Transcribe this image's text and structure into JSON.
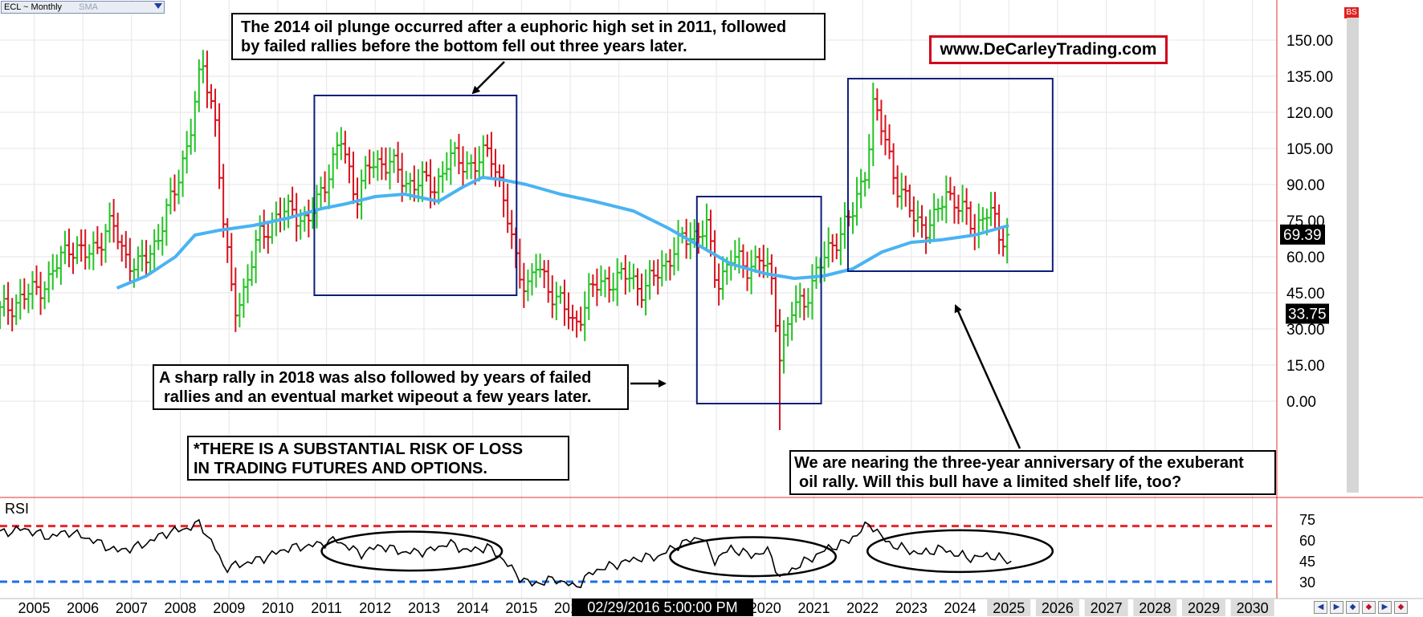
{
  "header": {
    "series_name": "ECL ~ Monthly",
    "indicator": "SMA",
    "website": "www.DeCarleyTrading.com",
    "bs_tag": "BS"
  },
  "annotations": {
    "callout_2014": [
      "The 2014 oil plunge occurred after a euphoric high set in 2011, followed",
      "by failed rallies before the bottom fell out three years later."
    ],
    "callout_2018": [
      "A sharp rally in 2018 was also followed by years of failed",
      "rallies and an eventual market wipeout a few years later."
    ],
    "callout_now": [
      "We are nearing the three-year anniversary of the exuberant",
      "oil rally. Will this bull have a limited shelf life, too?"
    ],
    "risk_disclaimer": [
      "*THERE IS A SUBSTANTIAL RISK OF LOSS",
      "IN TRADING FUTURES AND OPTIONS."
    ]
  },
  "cursor_label": "02/29/2016 5:00:00 PM",
  "rsi_title": "RSI",
  "colors": {
    "up_bar": "#22c322",
    "down_bar": "#d6141e",
    "sma": "#4ab3f2",
    "box": "#0b1e7a",
    "rsi_line": "#000000",
    "overbought": "#e8242c",
    "oversold": "#1e6fe0",
    "pane_border": "#e03030",
    "grid": "#e6e6e6",
    "ellipse": "#000000"
  },
  "chart_data": [
    {
      "type": "ohlc",
      "name": "ECL ~ Monthly",
      "ylim": [
        -20,
        165
      ],
      "y_ticks": [
        "150.00",
        "135.00",
        "120.00",
        "105.00",
        "90.00",
        "75.00",
        "60.00",
        "45.00",
        "30.00",
        "15.00",
        "0.00"
      ],
      "x_range": [
        2004.3,
        2030.5
      ],
      "x_ticks": [
        "2005",
        "2006",
        "2007",
        "2008",
        "2009",
        "2010",
        "2011",
        "2012",
        "2013",
        "2014",
        "2015",
        "2016",
        "2017",
        "2018",
        "2019",
        "2020",
        "2021",
        "2022",
        "2023",
        "2024",
        "2025",
        "2026",
        "2027",
        "2028",
        "2029",
        "2030"
      ],
      "price_anchors": [
        [
          2004.3,
          37
        ],
        [
          2004.7,
          42
        ],
        [
          2005.3,
          50
        ],
        [
          2005.7,
          65
        ],
        [
          2006.1,
          60
        ],
        [
          2006.6,
          74
        ],
        [
          2006.8,
          63
        ],
        [
          2007.1,
          55
        ],
        [
          2007.4,
          62
        ],
        [
          2007.6,
          72
        ],
        [
          2007.9,
          88
        ],
        [
          2008.2,
          112
        ],
        [
          2008.45,
          140
        ],
        [
          2008.7,
          120
        ],
        [
          2008.9,
          70
        ],
        [
          2009.1,
          38
        ],
        [
          2009.35,
          48
        ],
        [
          2009.6,
          68
        ],
        [
          2009.9,
          75
        ],
        [
          2010.3,
          80
        ],
        [
          2010.6,
          73
        ],
        [
          2010.9,
          88
        ],
        [
          2011.3,
          108
        ],
        [
          2011.6,
          85
        ],
        [
          2011.9,
          98
        ],
        [
          2012.3,
          100
        ],
        [
          2012.6,
          90
        ],
        [
          2012.9,
          92
        ],
        [
          2013.2,
          88
        ],
        [
          2013.5,
          101
        ],
        [
          2013.8,
          99
        ],
        [
          2014.1,
          98
        ],
        [
          2014.35,
          105
        ],
        [
          2014.6,
          88
        ],
        [
          2014.85,
          60
        ],
        [
          2015.1,
          47
        ],
        [
          2015.3,
          56
        ],
        [
          2015.55,
          47
        ],
        [
          2015.8,
          42
        ],
        [
          2016.08,
          30
        ],
        [
          2016.4,
          46
        ],
        [
          2016.8,
          50
        ],
        [
          2017.2,
          52
        ],
        [
          2017.5,
          46
        ],
        [
          2017.9,
          56
        ],
        [
          2018.3,
          67
        ],
        [
          2018.8,
          72
        ],
        [
          2019.0,
          48
        ],
        [
          2019.3,
          60
        ],
        [
          2019.6,
          55
        ],
        [
          2019.9,
          60
        ],
        [
          2020.15,
          48
        ],
        [
          2020.3,
          20
        ],
        [
          2020.55,
          37
        ],
        [
          2020.8,
          42
        ],
        [
          2021.1,
          55
        ],
        [
          2021.4,
          66
        ],
        [
          2021.8,
          78
        ],
        [
          2022.1,
          100
        ],
        [
          2022.2,
          123
        ],
        [
          2022.45,
          110
        ],
        [
          2022.7,
          90
        ],
        [
          2023.0,
          78
        ],
        [
          2023.3,
          72
        ],
        [
          2023.5,
          75
        ],
        [
          2023.7,
          88
        ],
        [
          2024.0,
          80
        ],
        [
          2024.3,
          72
        ],
        [
          2024.6,
          80
        ],
        [
          2024.8,
          68
        ],
        [
          2025.0,
          69.39
        ]
      ],
      "sma_series": [
        [
          2006.7,
          47
        ],
        [
          2007.3,
          52
        ],
        [
          2007.9,
          60
        ],
        [
          2008.3,
          69
        ],
        [
          2008.8,
          71
        ],
        [
          2009.5,
          73
        ],
        [
          2010.2,
          76
        ],
        [
          2010.9,
          80
        ],
        [
          2011.4,
          82
        ],
        [
          2012.0,
          85
        ],
        [
          2012.6,
          86
        ],
        [
          2013.3,
          83
        ],
        [
          2013.8,
          89
        ],
        [
          2014.2,
          93
        ],
        [
          2014.6,
          92
        ],
        [
          2015.1,
          90
        ],
        [
          2015.8,
          86
        ],
        [
          2016.5,
          83
        ],
        [
          2017.3,
          79
        ],
        [
          2018.0,
          72
        ],
        [
          2018.7,
          64
        ],
        [
          2019.3,
          57
        ],
        [
          2020.0,
          53
        ],
        [
          2020.6,
          51
        ],
        [
          2021.2,
          52
        ],
        [
          2021.8,
          55
        ],
        [
          2022.4,
          62
        ],
        [
          2023.0,
          66
        ],
        [
          2023.6,
          67
        ],
        [
          2024.3,
          69
        ],
        [
          2025.0,
          73
        ]
      ],
      "series_low": [
        [
          2020.32,
          -12
        ]
      ],
      "last_price_label": "69.39",
      "secondary_label": "33.75",
      "highlight_boxes": [
        {
          "x0": 2010.75,
          "x1": 2014.9,
          "y0": 44,
          "y1": 127
        },
        {
          "x0": 2018.6,
          "x1": 2021.15,
          "y0": -1,
          "y1": 85
        },
        {
          "x0": 2021.7,
          "x1": 2025.9,
          "y0": 54,
          "y1": 134
        }
      ]
    },
    {
      "type": "line",
      "name": "RSI",
      "ylim": [
        20,
        85
      ],
      "y_ticks": [
        "75",
        "60",
        "45",
        "30"
      ],
      "overbought": 70,
      "oversold": 30,
      "values": [
        [
          2004.3,
          65
        ],
        [
          2004.8,
          68
        ],
        [
          2005.3,
          62
        ],
        [
          2005.7,
          66
        ],
        [
          2006.2,
          60
        ],
        [
          2006.7,
          52
        ],
        [
          2007.2,
          56
        ],
        [
          2007.7,
          65
        ],
        [
          2008.1,
          68
        ],
        [
          2008.4,
          72
        ],
        [
          2008.7,
          55
        ],
        [
          2008.9,
          40
        ],
        [
          2009.2,
          42
        ],
        [
          2009.7,
          47
        ],
        [
          2010.2,
          54
        ],
        [
          2010.7,
          56
        ],
        [
          2011.2,
          60
        ],
        [
          2011.7,
          50
        ],
        [
          2012.1,
          56
        ],
        [
          2012.6,
          51
        ],
        [
          2013.1,
          52
        ],
        [
          2013.5,
          58
        ],
        [
          2013.9,
          52
        ],
        [
          2014.3,
          55
        ],
        [
          2014.6,
          47
        ],
        [
          2014.9,
          35
        ],
        [
          2015.2,
          28
        ],
        [
          2015.7,
          32
        ],
        [
          2016.1,
          26
        ],
        [
          2016.5,
          38
        ],
        [
          2016.9,
          42
        ],
        [
          2017.4,
          47
        ],
        [
          2017.8,
          48
        ],
        [
          2018.2,
          56
        ],
        [
          2018.7,
          63
        ],
        [
          2018.95,
          45
        ],
        [
          2019.3,
          54
        ],
        [
          2019.7,
          49
        ],
        [
          2020.1,
          52
        ],
        [
          2020.3,
          32
        ],
        [
          2020.6,
          40
        ],
        [
          2020.9,
          46
        ],
        [
          2021.3,
          54
        ],
        [
          2021.7,
          59
        ],
        [
          2022.15,
          72
        ],
        [
          2022.5,
          58
        ],
        [
          2022.9,
          53
        ],
        [
          2023.2,
          50
        ],
        [
          2023.6,
          54
        ],
        [
          2023.9,
          50
        ],
        [
          2024.2,
          47
        ],
        [
          2024.6,
          49
        ],
        [
          2024.9,
          46
        ],
        [
          2025.05,
          44
        ]
      ],
      "ellipses": [
        {
          "x_center": 2012.75,
          "x_radius": 1.85,
          "y_center": 52,
          "y_radius": 14
        },
        {
          "x_center": 2019.75,
          "x_radius": 1.7,
          "y_center": 48,
          "y_radius": 14
        },
        {
          "x_center": 2024.0,
          "x_radius": 1.9,
          "y_center": 52,
          "y_radius": 15
        }
      ]
    }
  ]
}
